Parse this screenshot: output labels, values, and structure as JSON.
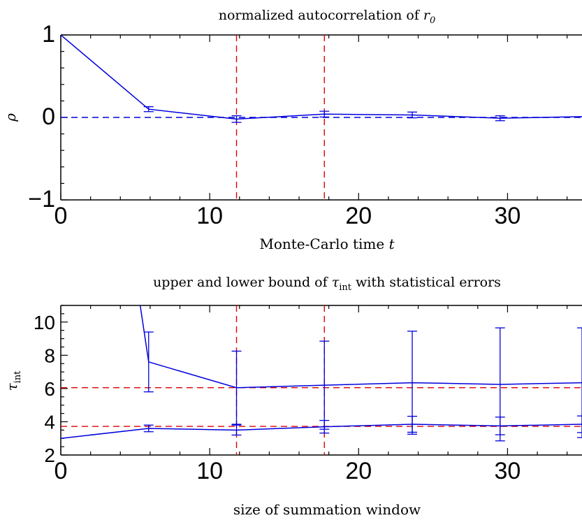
{
  "chart_data": [
    {
      "type": "line",
      "title": "normalized autocorrelation of r0",
      "title_parts": {
        "main": "normalized autocorrelation of ",
        "var": "r",
        "sub": "0"
      },
      "xlabel": "Monte-Carlo time t",
      "xlabel_parts": {
        "main": "Monte-Carlo time ",
        "var": "t"
      },
      "ylabel": "ρ",
      "xlim": [
        0,
        35
      ],
      "ylim": [
        -1,
        1
      ],
      "xticks": [
        0,
        10,
        20,
        30
      ],
      "yticks": [
        -1,
        0,
        1
      ],
      "ytick_labels": [
        "−1",
        "0",
        "1"
      ],
      "series": [
        {
          "color": "#0000dd",
          "x": [
            0,
            5.9,
            11.8,
            17.7,
            23.6,
            29.5,
            35
          ],
          "y": [
            1.0,
            0.1,
            -0.02,
            0.04,
            0.03,
            -0.01,
            0.01
          ],
          "err": [
            0,
            0.03,
            0.04,
            0.035,
            0.035,
            0.03,
            0
          ]
        }
      ],
      "hlines": [
        {
          "y": 0,
          "color": "#0000dd",
          "style": "dashed"
        }
      ],
      "vlines": [
        {
          "x": 11.8,
          "color": "#dd0000",
          "style": "dashed"
        },
        {
          "x": 17.7,
          "color": "#dd0000",
          "style": "dashed"
        }
      ]
    },
    {
      "type": "line",
      "title": "upper and lower bound of τint with statistical errors",
      "title_parts": {
        "main": "upper and lower bound of ",
        "var": "τ",
        "sub": "int",
        "rest": " with statistical errors"
      },
      "xlabel": "size of summation window",
      "ylabel": "τint",
      "ylabel_parts": {
        "var": "τ",
        "sub": "int"
      },
      "xlim": [
        0,
        35
      ],
      "ylim": [
        2,
        11
      ],
      "xticks": [
        0,
        10,
        20,
        30
      ],
      "yticks": [
        2,
        4,
        6,
        8,
        10
      ],
      "ytick_labels": [
        "2",
        "4",
        "6",
        "8",
        "10"
      ],
      "series": [
        {
          "color": "#0000dd",
          "x": [
            5.3,
            5.9,
            11.8,
            17.7,
            23.6,
            29.5,
            35
          ],
          "y": [
            11.2,
            7.6,
            6.05,
            6.2,
            6.35,
            6.25,
            6.35
          ],
          "err": [
            0,
            1.8,
            2.2,
            2.65,
            3.1,
            3.4,
            3.3
          ]
        },
        {
          "color": "#0000dd",
          "x": [
            0,
            5.9,
            11.8,
            17.7,
            23.6,
            29.5,
            35
          ],
          "y": [
            3.0,
            3.6,
            3.5,
            3.7,
            3.85,
            3.75,
            3.85
          ],
          "err": [
            0,
            0.2,
            0.3,
            0.38,
            0.48,
            0.53,
            0.5
          ]
        }
      ],
      "hlines": [
        {
          "y": 6.05,
          "color": "#dd0000",
          "style": "dashed"
        },
        {
          "y": 3.72,
          "color": "#dd0000",
          "style": "dashed"
        }
      ],
      "vlines": [
        {
          "x": 11.8,
          "color": "#dd0000",
          "style": "dashed"
        },
        {
          "x": 17.7,
          "color": "#dd0000",
          "style": "dashed"
        }
      ]
    }
  ]
}
